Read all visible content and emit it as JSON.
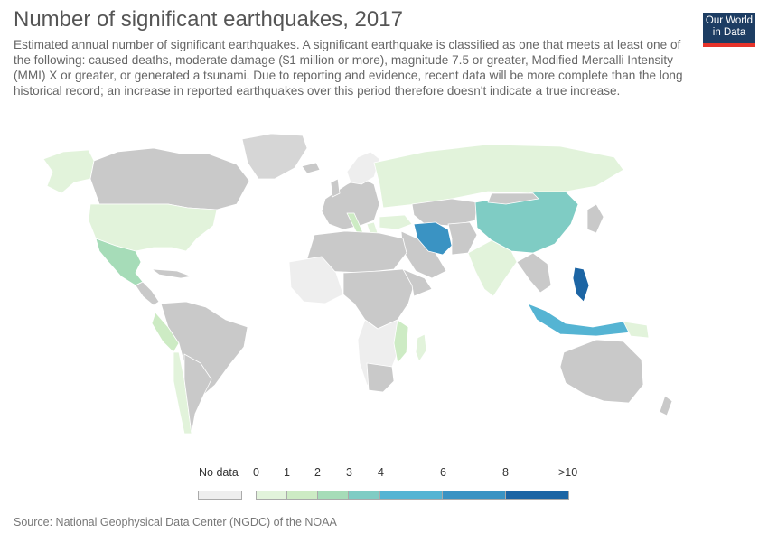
{
  "header": {
    "title": "Number of significant earthquakes, 2017",
    "subtitle": "Estimated annual number of significant earthquakes. A significant earthquake is classified as one that meets at least one of the following: caused deaths, moderate damage ($1 million or more), magnitude 7.5 or greater, Modified Mercalli Intensity (MMI) X or greater, or generated a tsunami. Due to reporting and evidence, recent data will be more complete than the long historical record; an increase in reported earthquakes over this period therefore doesn't indicate a true increase."
  },
  "logo": {
    "line1": "Our World",
    "line2": "in Data"
  },
  "legend": {
    "no_data_label": "No data",
    "no_data_color": "#eeeeee",
    "bins": [
      {
        "label_start": "0",
        "color": "#e2f3db"
      },
      {
        "label_start": "1",
        "color": "#cdebc4"
      },
      {
        "label_start": "2",
        "color": "#a6dcb8"
      },
      {
        "label_start": "3",
        "color": "#7fccc4"
      },
      {
        "label_start": "4",
        "color": "#55b4d3"
      },
      {
        "label_start": "6",
        "color": "#3a93c3"
      },
      {
        "label_start": "8",
        "color": "#1c65a4"
      }
    ],
    "last_label": ">10"
  },
  "colors": {
    "no_data": "#eeeeee",
    "missing": "#c9c9c9",
    "border": "#ffffff"
  },
  "footer": {
    "source": "Source: National Geophysical Data Center (NGDC) of the NOAA"
  }
}
